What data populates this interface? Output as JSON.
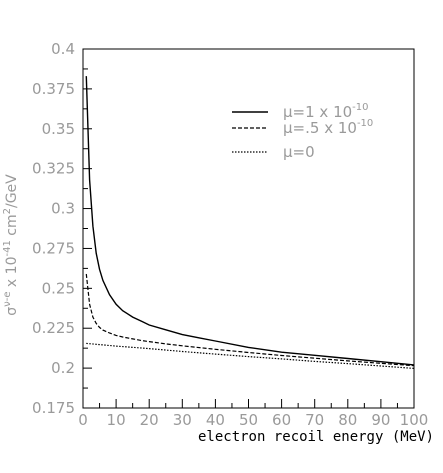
{
  "chart_data": {
    "type": "line",
    "xlabel": "electron recoil energy (MeV)",
    "ylabel": "σ^{ν-e} x 10^{-41} cm²/GeV",
    "xlim": [
      0,
      100
    ],
    "ylim": [
      0.175,
      0.4
    ],
    "xticks": [
      "0",
      "10",
      "20",
      "30",
      "40",
      "50",
      "60",
      "70",
      "80",
      "90",
      "100"
    ],
    "yticks": [
      "0.175",
      "0.2",
      "0.225",
      "0.25",
      "0.275",
      "0.3",
      "0.325",
      "0.35",
      "0.375",
      "0.4"
    ],
    "series": [
      {
        "name": "μ=1 x 10^-10",
        "style": "solid",
        "color": "#000000",
        "x": [
          1,
          2,
          3,
          4,
          5,
          6,
          8,
          10,
          12,
          15,
          18,
          20,
          25,
          30,
          35,
          40,
          50,
          60,
          70,
          80,
          90,
          100
        ],
        "y": [
          0.383,
          0.318,
          0.289,
          0.272,
          0.262,
          0.255,
          0.246,
          0.24,
          0.236,
          0.232,
          0.229,
          0.227,
          0.224,
          0.221,
          0.219,
          0.217,
          0.213,
          0.21,
          0.208,
          0.206,
          0.204,
          0.202
        ]
      },
      {
        "name": "μ=.5 x 10^-10",
        "style": "dashed",
        "color": "#000000",
        "x": [
          1,
          2,
          3,
          4,
          5,
          6,
          8,
          10,
          12,
          15,
          18,
          20,
          25,
          30,
          40,
          50,
          60,
          70,
          80,
          90,
          100
        ],
        "y": [
          0.259,
          0.24,
          0.232,
          0.228,
          0.2255,
          0.2238,
          0.222,
          0.2205,
          0.2195,
          0.2183,
          0.2172,
          0.2166,
          0.2152,
          0.214,
          0.2118,
          0.2098,
          0.2079,
          0.2062,
          0.2045,
          0.203,
          0.2015
        ]
      },
      {
        "name": "μ=0",
        "style": "dotted",
        "color": "#000000",
        "x": [
          1,
          10,
          20,
          30,
          40,
          50,
          60,
          70,
          80,
          90,
          100
        ],
        "y": [
          0.2155,
          0.2138,
          0.2122,
          0.2104,
          0.2088,
          0.2072,
          0.2058,
          0.2042,
          0.2028,
          0.2013,
          0.1998
        ]
      }
    ],
    "legend": {
      "placement": "top-right",
      "entries": [
        {
          "prefix": "μ=1 x 10",
          "exp": "-10"
        },
        {
          "prefix": "μ=.5 x 10",
          "exp": "-10"
        },
        {
          "prefix": "μ=0",
          "exp": ""
        }
      ]
    }
  }
}
